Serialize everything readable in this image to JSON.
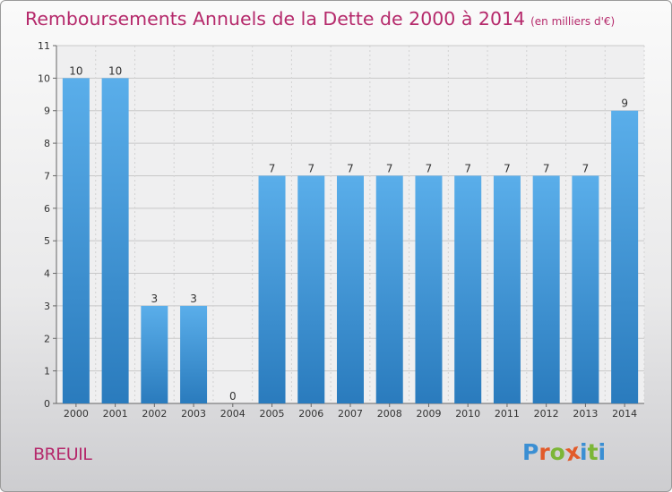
{
  "title": "Remboursements Annuels de la Dette de 2000 à 2014",
  "unit_note": "(en milliers d'€)",
  "place": "BREUIL",
  "brand": {
    "letters": [
      "P",
      "r",
      "o",
      "x",
      "i",
      "t",
      "i"
    ],
    "colors": [
      "#3b8fd3",
      "#e25b2a",
      "#7cb637",
      "#e25b2a",
      "#3b8fd3",
      "#7cb637",
      "#3b8fd3"
    ]
  },
  "colors": {
    "title": "#b5296b",
    "bar_light": "#5aaeea",
    "bar_dark": "#2a7bbd",
    "grid": "#c8c8c8"
  },
  "chart_data": {
    "type": "bar",
    "title": "Remboursements Annuels de la Dette de 2000 à 2014",
    "subtitle": "(en milliers d'€)",
    "xlabel": "",
    "ylabel": "",
    "categories": [
      "2000",
      "2001",
      "2002",
      "2003",
      "2004",
      "2005",
      "2006",
      "2007",
      "2008",
      "2009",
      "2010",
      "2011",
      "2012",
      "2013",
      "2014"
    ],
    "values": [
      10,
      10,
      3,
      3,
      0,
      7,
      7,
      7,
      7,
      7,
      7,
      7,
      7,
      7,
      9
    ],
    "data_labels": [
      "10",
      "10",
      "3",
      "3",
      "0",
      "7",
      "7",
      "7",
      "7",
      "7",
      "7",
      "7",
      "7",
      "7",
      "9"
    ],
    "ylim": [
      0,
      11
    ],
    "yticks": [
      "0",
      "1",
      "2",
      "3",
      "4",
      "5",
      "6",
      "7",
      "8",
      "9",
      "10",
      "11"
    ],
    "grid": true,
    "legend": "none"
  }
}
